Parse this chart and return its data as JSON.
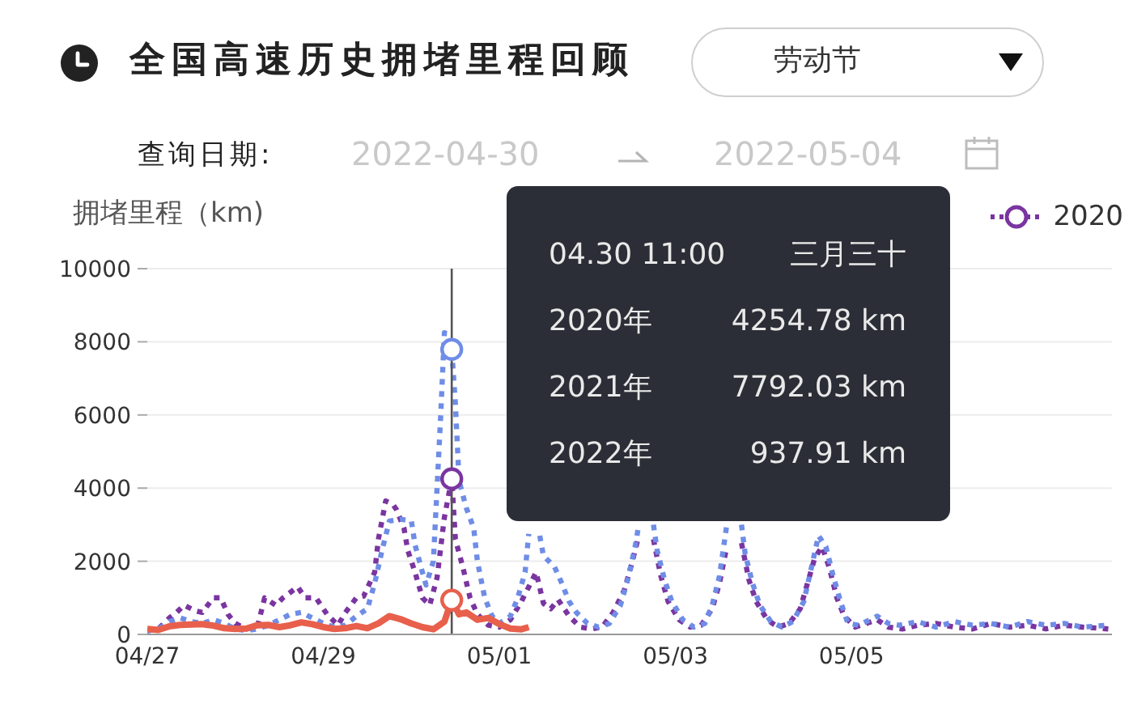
{
  "chart_data": {
    "type": "line",
    "title": "全国高速历史拥堵里程回顾",
    "ylabel": "拥堵里程（km)",
    "annotations": [
      "劳动节",
      "查询日期:",
      "2022-04-30",
      "2022-05-04",
      "04.30 11:00",
      "三月三十",
      "2020年",
      "4254.78 km",
      "2021年",
      "7792.03 km",
      "2022年",
      "937.91 km"
    ],
    "xlim": [
      "--04-27T00:00",
      "--05-07T23:00"
    ],
    "xticks": [
      {
        "value": "--04-27",
        "label": "04/27"
      },
      {
        "value": "--04-29",
        "label": "04/29"
      },
      {
        "value": "--05-01",
        "label": "05/01"
      },
      {
        "value": "--05-03",
        "label": "05/03"
      },
      {
        "value": "--05-05",
        "label": "05/05"
      }
    ],
    "ylim": [
      0,
      10000
    ],
    "yticks": [
      0,
      2000,
      4000,
      6000,
      8000,
      10000
    ],
    "grid": "y",
    "legend": "top right",
    "marker": "none",
    "ref_lines": [
      {
        "axis": "x",
        "value": "--04-30T11:00",
        "color": "#555555"
      }
    ],
    "series": [
      {
        "name": "2020",
        "color": "#7a35a0",
        "line_style": "dotted",
        "x": [
          "--04-27T00:00",
          "--04-27T03:00",
          "--04-27T06:00",
          "--04-27T08:00",
          "--04-27T10:00",
          "--04-27T13:00",
          "--04-27T15:00",
          "--04-27T18:00",
          "--04-27T20:00",
          "--04-27T22:00",
          "--04-28T00:00",
          "--04-28T03:00",
          "--04-28T06:00",
          "--04-28T08:00",
          "--04-28T11:00",
          "--04-28T13:00",
          "--04-28T17:00",
          "--04-28T19:00",
          "--04-28T22:00",
          "--04-29T01:00",
          "--04-29T04:00",
          "--04-29T06:00",
          "--04-29T09:00",
          "--04-29T11:00",
          "--04-29T14:00",
          "--04-29T15:00",
          "--04-29T17:00",
          "--04-29T19:00",
          "--04-29T20:00",
          "--04-29T22:00",
          "--04-29T23:00",
          "--04-30T01:00",
          "--04-30T03:00",
          "--04-30T05:00",
          "--04-30T07:00",
          "--04-30T09:00",
          "--04-30T11:00",
          "--04-30T12:00",
          "--04-30T14:00",
          "--04-30T16:00",
          "--04-30T18:00",
          "--04-30T21:00",
          "--05-01T00:00",
          "--05-01T03:00",
          "--05-01T06:00",
          "--05-01T08:00",
          "--05-01T10:00",
          "--05-01T12:00",
          "--05-01T14:00",
          "--05-01T16:00",
          "--05-01T19:00",
          "--05-01T22:00",
          "--05-02T01:00",
          "--05-02T04:00",
          "--05-02T07:00",
          "--05-02T10:00",
          "--05-02T12:00",
          "--05-02T14:00",
          "--05-02T16:00",
          "--05-02T18:00",
          "--05-02T20:00",
          "--05-02T22:00",
          "--05-03T01:00",
          "--05-03T04:00",
          "--05-03T07:00",
          "--05-03T10:00",
          "--05-03T12:00",
          "--05-03T14:00",
          "--05-03T16:00",
          "--05-03T18:00",
          "--05-03T20:00",
          "--05-03T22:00",
          "--05-04T01:00",
          "--05-04T04:00",
          "--05-04T07:00",
          "--05-04T10:00",
          "--05-04T12:00",
          "--05-04T14:00",
          "--05-04T16:00",
          "--05-04T18:00",
          "--05-04T20:00",
          "--05-04T22:00",
          "--05-05T01:00",
          "--05-05T04:00",
          "--05-05T07:00",
          "--05-05T10:00",
          "--05-05T14:00",
          "--05-05T18:00",
          "--05-05T23:00",
          "--05-06T04:00",
          "--05-06T09:00",
          "--05-06T14:00",
          "--05-06T19:00",
          "--05-07T00:00",
          "--05-07T05:00",
          "--05-07T10:00",
          "--05-07T15:00",
          "--05-07T22:00"
        ],
        "values": [
          100,
          150,
          450,
          600,
          800,
          650,
          600,
          1000,
          1000,
          550,
          300,
          150,
          200,
          1000,
          800,
          1000,
          1300,
          1000,
          1000,
          550,
          250,
          600,
          1000,
          1050,
          1700,
          2600,
          3650,
          3550,
          3400,
          2900,
          2300,
          1700,
          1000,
          800,
          1550,
          3200,
          4254.78,
          2600,
          1850,
          1000,
          550,
          250,
          200,
          400,
          900,
          1300,
          1700,
          850,
          700,
          950,
          500,
          200,
          150,
          200,
          600,
          1200,
          1900,
          2700,
          null,
          2600,
          1600,
          900,
          400,
          200,
          250,
          700,
          1400,
          2400,
          null,
          2500,
          1500,
          900,
          400,
          200,
          300,
          700,
          1400,
          2100,
          2400,
          1800,
          1000,
          500,
          200,
          300,
          400,
          200,
          150,
          250,
          300,
          200,
          150,
          300,
          200,
          250,
          150,
          250,
          200,
          150
        ]
      },
      {
        "color": "#6f8de6",
        "line_style": "dotted",
        "x": [
          "--04-27T00:00",
          "--04-27T03:00",
          "--04-27T06:00",
          "--04-27T09:00",
          "--04-27T12:00",
          "--04-27T15:00",
          "--04-27T18:00",
          "--04-27T21:00",
          "--04-28T00:00",
          "--04-28T03:00",
          "--04-28T06:00",
          "--04-28T09:00",
          "--04-28T12:00",
          "--04-28T15:00",
          "--04-28T18:00",
          "--04-28T21:00",
          "--04-29T00:00",
          "--04-29T03:00",
          "--04-29T06:00",
          "--04-29T09:00",
          "--04-29T12:00",
          "--04-29T14:00",
          "--04-29T16:00",
          "--04-29T18:00",
          "--04-29T21:00",
          "--04-30T00:00",
          "--04-30T01:00",
          "--04-30T03:00",
          "--04-30T04:00",
          "--04-30T06:00",
          "--04-30T07:00",
          "--04-30T08:00",
          "--04-30T09:00",
          "--04-30T10:00",
          "--04-30T11:00",
          "--04-30T12:00",
          "--04-30T13:00",
          "--04-30T15:00",
          "--04-30T17:00",
          "--04-30T18:00",
          "--04-30T20:00",
          "--04-30T22:00",
          "--05-01T00:00",
          "--05-01T03:00",
          "--05-01T05:00",
          "--05-01T07:00",
          "--05-01T08:00",
          "--05-01T09:00",
          "--05-01T11:00",
          "--05-01T12:00",
          "--05-01T15:00",
          "--05-01T17:00",
          "--05-01T19:00",
          "--05-01T21:00",
          "--05-02T00:00",
          "--05-02T03:00",
          "--05-02T06:00",
          "--05-02T09:00",
          "--05-02T11:00",
          "--05-02T13:00",
          "--05-02T14:00",
          "--05-02T16:00",
          "--05-02T18:00",
          "--05-02T19:00",
          "--05-02T21:00",
          "--05-02T23:00",
          "--05-03T02:00",
          "--05-03T05:00",
          "--05-03T08:00",
          "--05-03T10:00",
          "--05-03T12:00",
          "--05-03T13:00",
          "--05-03T14:00",
          "--05-03T16:00",
          "--05-03T18:00",
          "--05-03T19:00",
          "--05-03T21:00",
          "--05-03T23:00",
          "--05-04T02:00",
          "--05-04T05:00",
          "--05-04T08:00",
          "--05-04T11:00",
          "--05-04T13:00",
          "--05-04T15:00",
          "--05-04T17:00",
          "--05-04T19:00",
          "--05-04T21:00",
          "--05-04T23:00",
          "--05-05T02:00",
          "--05-05T05:00",
          "--05-05T07:00",
          "--05-05T10:00",
          "--05-05T13:00",
          "--05-05T18:00",
          "--05-05T23:00",
          "--05-06T04:00",
          "--05-06T09:00",
          "--05-06T14:00",
          "--05-06T19:00",
          "--05-07T00:00",
          "--05-07T05:00",
          "--05-07T10:00",
          "--05-07T15:00",
          "--05-07T22:00"
        ],
        "values": [
          100,
          150,
          350,
          450,
          350,
          300,
          400,
          300,
          150,
          100,
          150,
          250,
          400,
          550,
          600,
          450,
          300,
          200,
          250,
          500,
          700,
          1400,
          2300,
          3100,
          3150,
          3100,
          2450,
          1700,
          1350,
          2000,
          4000,
          6000,
          8250,
          8200,
          7792.03,
          6300,
          4200,
          3450,
          2900,
          2000,
          1000,
          500,
          300,
          500,
          1000,
          1700,
          2750,
          null,
          2700,
          2150,
          1850,
          1400,
          900,
          600,
          300,
          200,
          300,
          800,
          1500,
          2400,
          3000,
          null,
          3000,
          2300,
          1500,
          900,
          400,
          200,
          300,
          800,
          1600,
          2300,
          3000,
          null,
          3000,
          2200,
          1400,
          800,
          350,
          200,
          350,
          900,
          1800,
          2700,
          2400,
          1600,
          900,
          300,
          250,
          400,
          500,
          300,
          250,
          350,
          200,
          350,
          250,
          300,
          200,
          350,
          250,
          300,
          200,
          250
        ]
      },
      {
        "color": "#e8604c",
        "line_style": "solid",
        "x": [
          "--04-27T00:00",
          "--04-27T03:00",
          "--04-27T06:00",
          "--04-27T09:00",
          "--04-27T12:00",
          "--04-27T15:00",
          "--04-27T18:00",
          "--04-27T21:00",
          "--04-28T00:00",
          "--04-28T03:00",
          "--04-28T06:00",
          "--04-28T09:00",
          "--04-28T12:00",
          "--04-28T15:00",
          "--04-28T18:00",
          "--04-28T21:00",
          "--04-29T00:00",
          "--04-29T03:00",
          "--04-29T06:00",
          "--04-29T09:00",
          "--04-29T12:00",
          "--04-29T15:00",
          "--04-29T18:00",
          "--04-29T21:00",
          "--04-30T00:00",
          "--04-30T03:00",
          "--04-30T06:00",
          "--04-30T09:00",
          "--04-30T11:00",
          "--04-30T13:00",
          "--04-30T15:00",
          "--04-30T18:00",
          "--04-30T21:00",
          "--05-01T00:00",
          "--05-01T03:00",
          "--05-01T06:00",
          "--05-01T08:00"
        ],
        "values": [
          150,
          120,
          220,
          260,
          270,
          280,
          240,
          170,
          150,
          160,
          250,
          260,
          200,
          250,
          330,
          280,
          200,
          150,
          170,
          230,
          170,
          300,
          500,
          420,
          300,
          200,
          140,
          350,
          937.91,
          550,
          600,
          400,
          450,
          280,
          160,
          140,
          200
        ]
      },
      {
        "type": "scatter",
        "color": "#7a35a0",
        "marker": "circle",
        "x": [
          "--04-30T11:00"
        ],
        "values": [
          4254.78
        ]
      },
      {
        "type": "scatter",
        "color": "#6f8de6",
        "marker": "circle",
        "x": [
          "--04-30T11:00"
        ],
        "values": [
          7792.03
        ]
      },
      {
        "type": "scatter",
        "color": "#e8604c",
        "marker": "circle",
        "x": [
          "--04-30T11:00"
        ],
        "values": [
          937.91
        ]
      }
    ]
  }
}
